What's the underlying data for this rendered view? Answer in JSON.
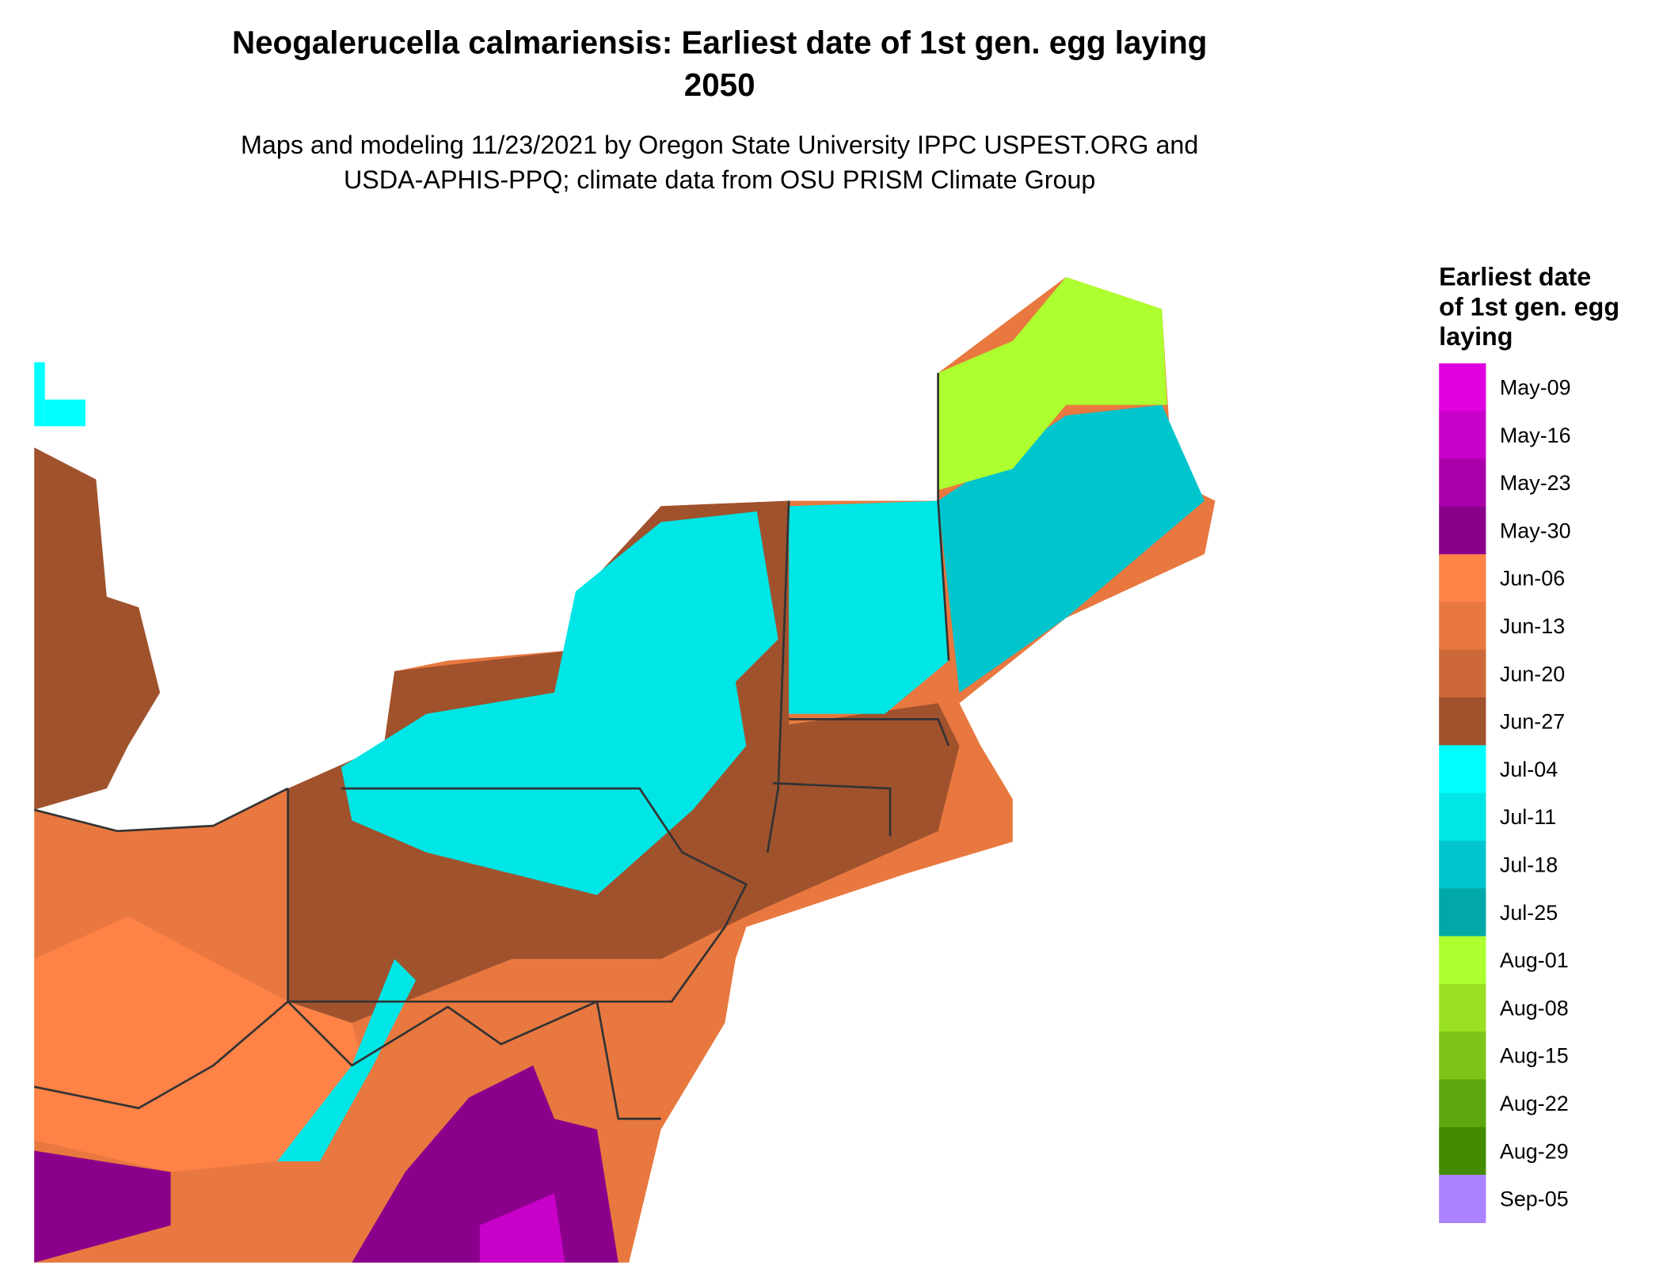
{
  "header": {
    "title_lines": [
      "Neogalerucella calmariensis: Earliest date of 1st gen. egg laying",
      "2050"
    ],
    "subtitle_lines": [
      "Maps and modeling 11/23/2021 by Oregon State University IPPC USPEST.ORG and",
      "USDA-APHIS-PPQ; climate data from OSU PRISM Climate Group"
    ]
  },
  "legend": {
    "title_lines": [
      "Earliest date",
      "of 1st gen. egg",
      "laying"
    ],
    "items": [
      {
        "label": "May-09",
        "color": "#e000e0"
      },
      {
        "label": "May-16",
        "color": "#c800c8"
      },
      {
        "label": "May-23",
        "color": "#aa00aa"
      },
      {
        "label": "May-30",
        "color": "#8b008b"
      },
      {
        "label": "Jun-06",
        "color": "#ff8247"
      },
      {
        "label": "Jun-13",
        "color": "#e8783f"
      },
      {
        "label": "Jun-20",
        "color": "#cd6839"
      },
      {
        "label": "Jun-27",
        "color": "#a0522d"
      },
      {
        "label": "Jul-04",
        "color": "#00ffff"
      },
      {
        "label": "Jul-11",
        "color": "#00e5e5"
      },
      {
        "label": "Jul-18",
        "color": "#00c5cd"
      },
      {
        "label": "Jul-25",
        "color": "#00a8a8"
      },
      {
        "label": "Aug-01",
        "color": "#adff2f"
      },
      {
        "label": "Aug-08",
        "color": "#98e020"
      },
      {
        "label": "Aug-15",
        "color": "#7ec51a"
      },
      {
        "label": "Aug-22",
        "color": "#5ea80e"
      },
      {
        "label": "Aug-29",
        "color": "#458b00"
      },
      {
        "label": "Sep-05",
        "color": "#ab82ff"
      }
    ]
  }
}
